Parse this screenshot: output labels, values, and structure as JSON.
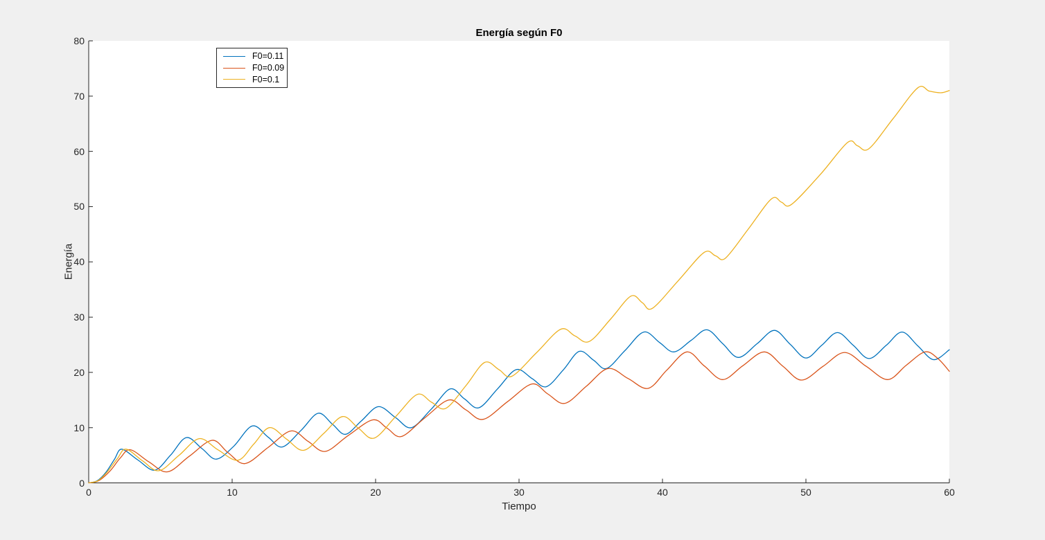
{
  "colors": {
    "figure_background": "#F0F0F0",
    "plot_background": "#FFFFFF",
    "axis": "#262626",
    "title_text": "#000000"
  },
  "chart_data": {
    "type": "line",
    "title": "Energía según F0",
    "xlabel": "Tiempo",
    "ylabel": "Energía",
    "xlim": [
      0,
      60
    ],
    "ylim": [
      0,
      80
    ],
    "x_ticks": [
      0,
      10,
      20,
      30,
      40,
      50,
      60
    ],
    "y_ticks": [
      0,
      10,
      20,
      30,
      40,
      50,
      60,
      70,
      80
    ],
    "grid": false,
    "box": false,
    "tick_direction": "in",
    "legend_position": "top-left-inside",
    "series": [
      {
        "name": "F0=0.11",
        "color": "#0072BD",
        "points": [
          [
            0,
            0
          ],
          [
            0.6,
            0.4
          ],
          [
            1.2,
            1.9
          ],
          [
            1.8,
            4.3
          ],
          [
            2.3,
            6.1
          ],
          [
            3.4,
            4.2
          ],
          [
            4.6,
            2.3
          ],
          [
            5.7,
            5.0
          ],
          [
            6.8,
            8.2
          ],
          [
            7.9,
            6.2
          ],
          [
            8.9,
            4.3
          ],
          [
            10.1,
            6.6
          ],
          [
            11.4,
            10.3
          ],
          [
            12.5,
            8.3
          ],
          [
            13.5,
            6.5
          ],
          [
            14.8,
            9.5
          ],
          [
            16.0,
            12.6
          ],
          [
            17.0,
            10.6
          ],
          [
            17.9,
            8.8
          ],
          [
            19.0,
            11.2
          ],
          [
            20.2,
            13.8
          ],
          [
            21.4,
            11.8
          ],
          [
            22.5,
            10.0
          ],
          [
            23.9,
            13.4
          ],
          [
            25.2,
            17.0
          ],
          [
            26.2,
            15.2
          ],
          [
            27.2,
            13.6
          ],
          [
            28.5,
            17.0
          ],
          [
            29.8,
            20.5
          ],
          [
            30.9,
            18.9
          ],
          [
            31.9,
            17.4
          ],
          [
            33.1,
            20.5
          ],
          [
            34.2,
            23.8
          ],
          [
            35.2,
            22.2
          ],
          [
            36.1,
            20.7
          ],
          [
            37.4,
            24.0
          ],
          [
            38.7,
            27.3
          ],
          [
            39.8,
            25.4
          ],
          [
            40.8,
            23.7
          ],
          [
            42.0,
            25.8
          ],
          [
            43.1,
            27.7
          ],
          [
            44.2,
            25.2
          ],
          [
            45.3,
            22.7
          ],
          [
            46.6,
            25.2
          ],
          [
            47.8,
            27.6
          ],
          [
            48.9,
            25.1
          ],
          [
            50.0,
            22.6
          ],
          [
            51.1,
            24.9
          ],
          [
            52.2,
            27.2
          ],
          [
            53.3,
            24.9
          ],
          [
            54.4,
            22.5
          ],
          [
            55.6,
            24.9
          ],
          [
            56.7,
            27.3
          ],
          [
            57.8,
            24.8
          ],
          [
            58.9,
            22.3
          ],
          [
            60,
            24.1
          ]
        ]
      },
      {
        "name": "F0=0.09",
        "color": "#D95319",
        "points": [
          [
            0,
            0
          ],
          [
            0.7,
            0.4
          ],
          [
            1.5,
            2.2
          ],
          [
            2.2,
            4.5
          ],
          [
            2.9,
            6.0
          ],
          [
            4.2,
            3.8
          ],
          [
            5.5,
            2.0
          ],
          [
            7.0,
            4.8
          ],
          [
            8.6,
            7.7
          ],
          [
            9.7,
            5.5
          ],
          [
            10.9,
            3.5
          ],
          [
            12.5,
            6.4
          ],
          [
            14.1,
            9.4
          ],
          [
            15.3,
            7.5
          ],
          [
            16.5,
            5.7
          ],
          [
            18.1,
            8.6
          ],
          [
            19.8,
            11.4
          ],
          [
            20.8,
            9.9
          ],
          [
            21.8,
            8.4
          ],
          [
            23.4,
            11.7
          ],
          [
            25.1,
            15.0
          ],
          [
            26.3,
            13.2
          ],
          [
            27.5,
            11.5
          ],
          [
            29.2,
            14.7
          ],
          [
            30.9,
            17.9
          ],
          [
            32.0,
            16.1
          ],
          [
            33.2,
            14.4
          ],
          [
            34.7,
            17.5
          ],
          [
            36.2,
            20.7
          ],
          [
            37.6,
            18.9
          ],
          [
            39.0,
            17.1
          ],
          [
            40.3,
            20.4
          ],
          [
            41.7,
            23.7
          ],
          [
            42.9,
            21.2
          ],
          [
            44.2,
            18.7
          ],
          [
            45.6,
            21.2
          ],
          [
            47.1,
            23.7
          ],
          [
            48.4,
            21.1
          ],
          [
            49.7,
            18.6
          ],
          [
            51.2,
            21.1
          ],
          [
            52.7,
            23.6
          ],
          [
            54.2,
            21.1
          ],
          [
            55.7,
            18.7
          ],
          [
            57.0,
            21.3
          ],
          [
            58.3,
            23.7
          ],
          [
            59.2,
            22.5
          ],
          [
            60,
            20.2
          ]
        ]
      },
      {
        "name": "F0=0.1",
        "color": "#EDB120",
        "points": [
          [
            0,
            0
          ],
          [
            0.65,
            0.4
          ],
          [
            1.3,
            2.0
          ],
          [
            2.0,
            4.4
          ],
          [
            2.6,
            6.1
          ],
          [
            3.75,
            4.0
          ],
          [
            4.9,
            2.2
          ],
          [
            6.3,
            5.0
          ],
          [
            7.7,
            8.0
          ],
          [
            9.0,
            6.0
          ],
          [
            10.4,
            4.1
          ],
          [
            11.5,
            7.0
          ],
          [
            12.6,
            10.0
          ],
          [
            13.8,
            7.9
          ],
          [
            15.0,
            5.9
          ],
          [
            16.4,
            9.0
          ],
          [
            17.7,
            12.0
          ],
          [
            18.8,
            9.9
          ],
          [
            19.9,
            8.1
          ],
          [
            21.4,
            12.0
          ],
          [
            22.9,
            16.0
          ],
          [
            23.9,
            14.6
          ],
          [
            24.9,
            13.5
          ],
          [
            26.3,
            17.6
          ],
          [
            27.6,
            21.8
          ],
          [
            28.6,
            20.5
          ],
          [
            29.5,
            19.3
          ],
          [
            31.2,
            23.5
          ],
          [
            32.9,
            27.8
          ],
          [
            33.9,
            26.6
          ],
          [
            34.9,
            25.6
          ],
          [
            36.4,
            29.7
          ],
          [
            37.8,
            33.8
          ],
          [
            38.6,
            32.6
          ],
          [
            39.3,
            31.6
          ],
          [
            41.1,
            36.6
          ],
          [
            42.9,
            41.7
          ],
          [
            43.7,
            41.1
          ],
          [
            44.4,
            40.7
          ],
          [
            46.0,
            46.0
          ],
          [
            47.6,
            51.4
          ],
          [
            48.3,
            50.8
          ],
          [
            49.0,
            50.4
          ],
          [
            51.0,
            55.8
          ],
          [
            52.9,
            61.6
          ],
          [
            53.6,
            61.0
          ],
          [
            54.4,
            60.5
          ],
          [
            56.1,
            66.0
          ],
          [
            57.8,
            71.5
          ],
          [
            58.6,
            70.9
          ],
          [
            59.4,
            70.6
          ],
          [
            60,
            71.0
          ]
        ]
      }
    ]
  }
}
